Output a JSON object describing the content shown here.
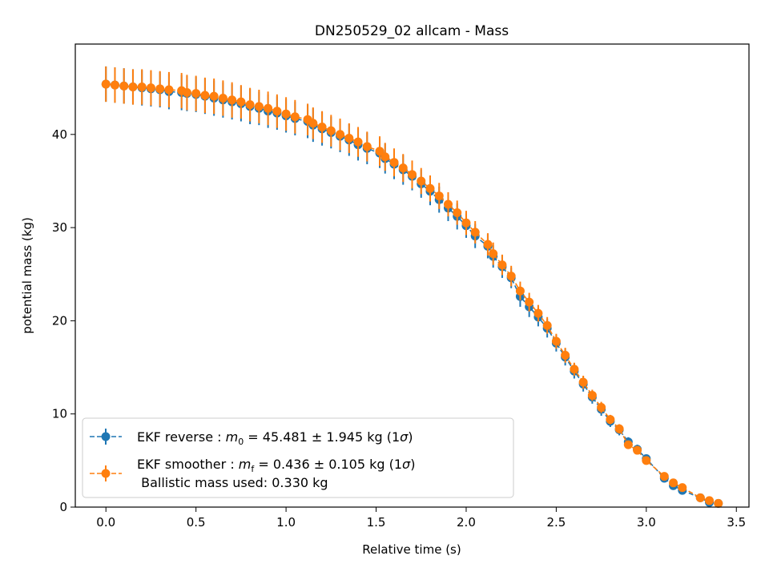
{
  "chart_data": {
    "type": "scatter",
    "title": "DN250529_02 allcam - Mass",
    "xlabel": "Relative time (s)",
    "ylabel": "potential mass (kg)",
    "xlim": [
      -0.17,
      3.57
    ],
    "ylim": [
      0,
      49.7
    ],
    "xticks": [
      "0.0",
      "0.5",
      "1.0",
      "1.5",
      "2.0",
      "2.5",
      "3.0",
      "3.5"
    ],
    "xtick_values": [
      0.0,
      0.5,
      1.0,
      1.5,
      2.0,
      2.5,
      3.0,
      3.5
    ],
    "yticks": [
      "0",
      "10",
      "20",
      "30",
      "40"
    ],
    "ytick_values": [
      0,
      10,
      20,
      30,
      40
    ],
    "grid": false,
    "legend_position": "lower-left",
    "legend": [
      {
        "series": "reverse",
        "text_pre": "EKF reverse : ",
        "sym": "m",
        "sub": "0",
        "text_post": " =  45.481 ± 1.945 kg (1",
        "sigma": "σ",
        "close": ")"
      },
      {
        "series": "smoother",
        "text_pre": "EKF smoother : ",
        "sym": "m",
        "sub": "f",
        "text_post": " =  0.436 ± 0.105 kg (1",
        "sigma": "σ",
        "close": ")",
        "line2": " Ballistic mass used: 0.330 kg"
      }
    ],
    "series": [
      {
        "name": "EKF reverse",
        "color": "#1f77b4",
        "x": [
          0.0,
          0.05,
          0.1,
          0.15,
          0.2,
          0.25,
          0.3,
          0.35,
          0.42,
          0.45,
          0.5,
          0.55,
          0.6,
          0.65,
          0.7,
          0.75,
          0.8,
          0.85,
          0.9,
          0.95,
          1.0,
          1.05,
          1.12,
          1.15,
          1.2,
          1.25,
          1.3,
          1.35,
          1.4,
          1.45,
          1.52,
          1.55,
          1.6,
          1.65,
          1.7,
          1.75,
          1.8,
          1.85,
          1.9,
          1.95,
          2.0,
          2.05,
          2.12,
          2.15,
          2.2,
          2.25,
          2.3,
          2.35,
          2.4,
          2.45,
          2.5,
          2.55,
          2.6,
          2.65,
          2.7,
          2.75,
          2.8,
          2.85,
          2.9,
          2.95,
          3.0,
          3.1,
          3.15,
          3.2,
          3.3,
          3.35,
          3.4
        ],
        "y": [
          45.4,
          45.3,
          45.2,
          45.1,
          45.0,
          44.9,
          44.8,
          44.6,
          44.5,
          44.4,
          44.3,
          44.1,
          43.9,
          43.7,
          43.5,
          43.3,
          43.0,
          42.8,
          42.5,
          42.3,
          42.0,
          41.7,
          41.4,
          41.0,
          40.6,
          40.2,
          39.8,
          39.4,
          38.9,
          38.5,
          38.0,
          37.4,
          36.8,
          36.2,
          35.5,
          34.7,
          33.9,
          33.0,
          32.1,
          31.2,
          30.2,
          29.1,
          28.0,
          26.9,
          25.8,
          24.6,
          22.6,
          21.5,
          20.4,
          19.2,
          17.6,
          16.1,
          14.6,
          13.2,
          11.8,
          10.5,
          9.2,
          8.3,
          7.0,
          6.2,
          5.2,
          3.1,
          2.3,
          1.8,
          1.0,
          0.5,
          0.4
        ],
        "err": [
          1.9,
          1.9,
          1.9,
          1.9,
          1.9,
          1.9,
          1.9,
          1.9,
          1.9,
          1.9,
          1.9,
          1.9,
          1.9,
          1.9,
          1.9,
          1.9,
          1.9,
          1.8,
          1.8,
          1.8,
          1.8,
          1.8,
          1.8,
          1.8,
          1.8,
          1.7,
          1.7,
          1.7,
          1.7,
          1.7,
          1.6,
          1.6,
          1.6,
          1.6,
          1.5,
          1.5,
          1.5,
          1.4,
          1.4,
          1.4,
          1.3,
          1.3,
          1.3,
          1.2,
          1.2,
          1.1,
          1.1,
          1.1,
          1.0,
          1.0,
          0.9,
          0.9,
          0.8,
          0.8,
          0.7,
          0.7,
          0.6,
          0.6,
          0.5,
          0.5,
          0.4,
          0.3,
          0.3,
          0.2,
          0.2,
          0.1,
          0.1
        ]
      },
      {
        "name": "EKF smoother",
        "color": "#ff7f0e",
        "x": [
          0.0,
          0.05,
          0.1,
          0.15,
          0.2,
          0.25,
          0.3,
          0.35,
          0.42,
          0.45,
          0.5,
          0.55,
          0.6,
          0.65,
          0.7,
          0.75,
          0.8,
          0.85,
          0.9,
          0.95,
          1.0,
          1.05,
          1.12,
          1.15,
          1.2,
          1.25,
          1.3,
          1.35,
          1.4,
          1.45,
          1.52,
          1.55,
          1.6,
          1.65,
          1.7,
          1.75,
          1.8,
          1.85,
          1.9,
          1.95,
          2.0,
          2.05,
          2.12,
          2.15,
          2.2,
          2.25,
          2.3,
          2.35,
          2.4,
          2.45,
          2.5,
          2.55,
          2.6,
          2.65,
          2.7,
          2.75,
          2.8,
          2.85,
          2.9,
          2.95,
          3.0,
          3.1,
          3.15,
          3.2,
          3.3,
          3.35,
          3.4
        ],
        "y": [
          45.4,
          45.3,
          45.2,
          45.1,
          45.1,
          45.0,
          44.9,
          44.8,
          44.7,
          44.5,
          44.4,
          44.2,
          44.1,
          43.9,
          43.7,
          43.5,
          43.2,
          43.0,
          42.8,
          42.5,
          42.2,
          41.9,
          41.6,
          41.2,
          40.8,
          40.4,
          40.0,
          39.6,
          39.2,
          38.7,
          38.2,
          37.6,
          37.0,
          36.4,
          35.7,
          35.0,
          34.2,
          33.4,
          32.5,
          31.6,
          30.5,
          29.5,
          28.2,
          27.2,
          26.0,
          24.8,
          23.2,
          22.0,
          20.8,
          19.5,
          17.8,
          16.3,
          14.8,
          13.4,
          12.0,
          10.7,
          9.4,
          8.4,
          6.7,
          6.1,
          5.0,
          3.3,
          2.6,
          2.1,
          1.0,
          0.7,
          0.4
        ],
        "err": [
          1.9,
          1.9,
          1.9,
          1.9,
          1.9,
          1.9,
          1.9,
          1.9,
          1.9,
          1.9,
          1.9,
          1.9,
          1.9,
          1.9,
          1.9,
          1.8,
          1.8,
          1.8,
          1.8,
          1.8,
          1.8,
          1.8,
          1.7,
          1.7,
          1.7,
          1.7,
          1.7,
          1.6,
          1.6,
          1.6,
          1.6,
          1.5,
          1.5,
          1.5,
          1.5,
          1.4,
          1.4,
          1.4,
          1.3,
          1.3,
          1.3,
          1.2,
          1.2,
          1.2,
          1.1,
          1.1,
          1.0,
          1.0,
          0.9,
          0.9,
          0.8,
          0.8,
          0.7,
          0.7,
          0.6,
          0.6,
          0.5,
          0.5,
          0.4,
          0.4,
          0.3,
          0.3,
          0.2,
          0.2,
          0.1,
          0.1,
          0.1
        ]
      }
    ]
  }
}
